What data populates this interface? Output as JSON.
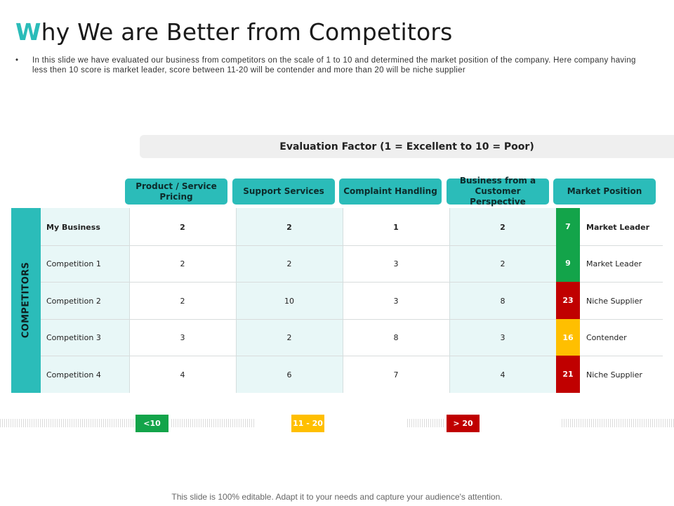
{
  "slide": {
    "title_first_letter": "W",
    "title_rest": "hy We are Better from Competitors",
    "bullet_char": "•",
    "description": "In this slide we have evaluated our business from competitors on the scale of 1 to 10 and determined the market position of the company. Here company having less then 10 score is market leader, score between 11-20 will be contender and more than 20 will be niche supplier",
    "footer": "This slide is 100% editable. Adapt it to your needs and capture your audience's attention."
  },
  "table": {
    "evaluation_header": "Evaluation Factor (1 = Excellent to 10 = Poor)",
    "side_label": "COMPETITORS",
    "columns": [
      "Product / Service Pricing",
      "Support Services",
      "Complaint Handling",
      "Business from a Customer Perspective",
      "Market Position"
    ],
    "rows": [
      {
        "name": "My Business",
        "values": [
          "2",
          "2",
          "1",
          "2"
        ],
        "score": "7",
        "position": "Market Leader",
        "color": "#13a44a"
      },
      {
        "name": "Competition 1",
        "values": [
          "2",
          "2",
          "3",
          "2"
        ],
        "score": "9",
        "position": "Market Leader",
        "color": "#13a44a"
      },
      {
        "name": "Competition 2",
        "values": [
          "2",
          "10",
          "3",
          "8"
        ],
        "score": "23",
        "position": "Niche Supplier",
        "color": "#c00000"
      },
      {
        "name": "Competition 3",
        "values": [
          "3",
          "2",
          "8",
          "3"
        ],
        "score": "16",
        "position": "Contender",
        "color": "#ffbf00"
      },
      {
        "name": "Competition 4",
        "values": [
          "4",
          "6",
          "7",
          "4"
        ],
        "score": "21",
        "position": "Niche Supplier",
        "color": "#c00000"
      }
    ]
  },
  "legend": [
    {
      "label": "<10",
      "color": "#13a44a"
    },
    {
      "label": "11 - 20",
      "color": "#ffbf00"
    },
    {
      "label": "> 20",
      "color": "#c00000"
    }
  ],
  "colors": {
    "accent": "#2bbcb9",
    "light_teal": "#e8f7f7"
  }
}
